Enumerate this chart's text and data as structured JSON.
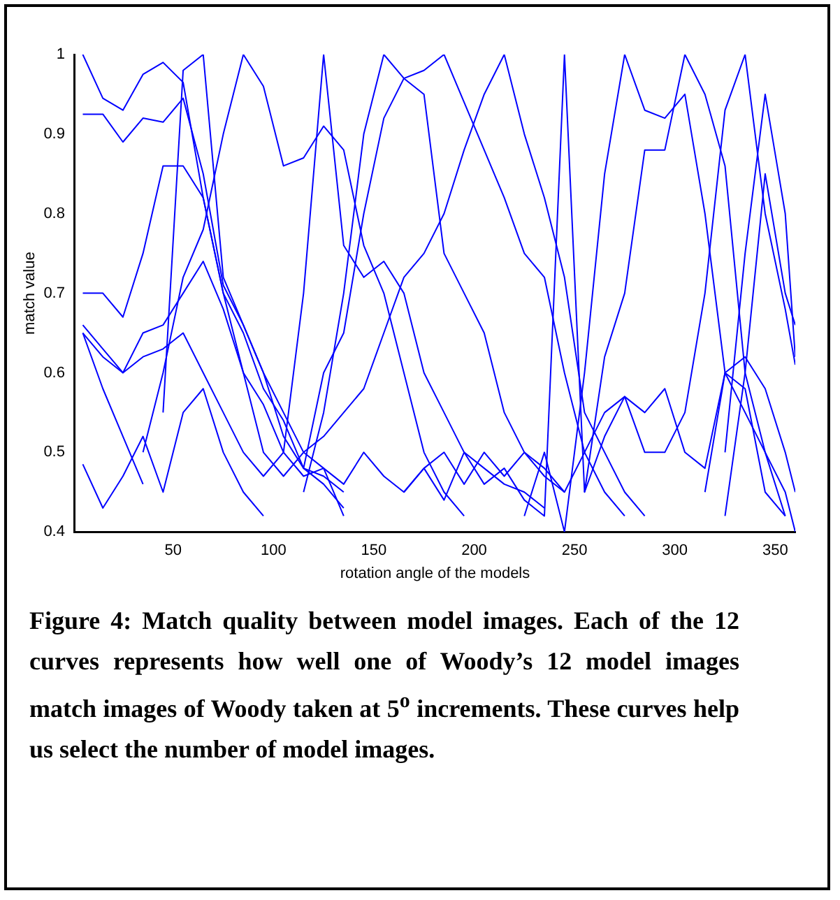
{
  "chart_data": {
    "type": "line",
    "xlabel": "rotation angle of the models",
    "ylabel": "match value",
    "x": [
      5,
      15,
      25,
      35,
      45,
      55,
      65,
      75,
      85,
      95,
      105,
      115,
      125,
      135,
      145,
      155,
      165,
      175,
      185,
      195,
      205,
      215,
      225,
      235,
      245,
      255,
      265,
      275,
      285,
      295,
      305,
      315,
      325,
      335,
      345,
      355,
      360
    ],
    "xlim": [
      1,
      360
    ],
    "xticks": [
      50,
      100,
      150,
      200,
      250,
      300,
      350
    ],
    "ylim": [
      0.4,
      1
    ],
    "yticks": [
      0.4,
      0.5,
      0.6,
      0.7,
      0.8,
      0.9,
      1
    ],
    "series": [
      {
        "color": "#0000ff",
        "values": [
          1.0,
          0.945,
          0.93,
          0.975,
          0.99,
          0.965,
          0.82,
          0.7,
          0.65,
          0.58,
          0.54,
          0.48,
          0.47,
          0.45,
          null,
          null,
          null,
          null,
          null,
          null,
          null,
          null,
          null,
          null,
          null,
          null,
          null,
          null,
          null,
          null,
          null,
          null,
          0.5,
          0.75,
          0.95,
          0.8,
          0.62
        ]
      },
      {
        "color": "#0000ff",
        "values": [
          0.925,
          0.925,
          0.89,
          0.92,
          0.915,
          0.945,
          0.85,
          0.71,
          0.66,
          0.6,
          0.55,
          0.5,
          0.48,
          0.42,
          null,
          null,
          null,
          null,
          null,
          null,
          null,
          null,
          null,
          null,
          null,
          null,
          null,
          null,
          null,
          null,
          null,
          null,
          0.42,
          0.6,
          0.85,
          0.7,
          0.66
        ]
      },
      {
        "color": "#0000ff",
        "values": [
          null,
          null,
          null,
          null,
          0.55,
          0.98,
          1.0,
          0.72,
          0.66,
          0.6,
          0.52,
          0.48,
          0.46,
          0.43,
          null,
          null,
          null,
          null,
          null,
          null,
          null,
          null,
          null,
          null,
          null,
          null,
          null,
          null,
          null,
          null,
          null,
          0.45,
          0.6,
          0.62,
          0.58,
          0.5,
          0.45
        ]
      },
      {
        "color": "#0000ff",
        "values": [
          null,
          null,
          null,
          0.5,
          0.6,
          0.72,
          0.78,
          0.9,
          1.0,
          0.96,
          0.86,
          0.87,
          0.91,
          0.88,
          0.76,
          0.7,
          0.6,
          0.5,
          0.45,
          0.42,
          null,
          null,
          null,
          null,
          null,
          null,
          null,
          null,
          null,
          null,
          null,
          null,
          null,
          null,
          null,
          null,
          null
        ]
      },
      {
        "color": "#0000ff",
        "values": [
          0.66,
          0.63,
          0.6,
          0.62,
          0.63,
          0.65,
          0.6,
          0.55,
          0.5,
          0.47,
          0.5,
          0.7,
          1.0,
          0.76,
          0.72,
          0.74,
          0.7,
          0.6,
          0.55,
          0.5,
          0.48,
          0.46,
          0.45,
          0.43,
          null,
          null,
          null,
          null,
          null,
          null,
          null,
          null,
          null,
          null,
          null,
          null,
          null
        ]
      },
      {
        "color": "#0000ff",
        "values": [
          0.485,
          0.43,
          0.47,
          0.52,
          0.45,
          0.55,
          0.58,
          0.5,
          0.45,
          0.42,
          null,
          0.45,
          0.55,
          0.7,
          0.9,
          1.0,
          0.97,
          0.95,
          0.75,
          0.7,
          0.65,
          0.55,
          0.5,
          0.48,
          0.45,
          null,
          null,
          null,
          null,
          null,
          null,
          null,
          null,
          null,
          null,
          null,
          null
        ]
      },
      {
        "color": "#0000ff",
        "values": [
          0.65,
          0.58,
          0.52,
          0.46,
          null,
          null,
          null,
          null,
          null,
          null,
          null,
          0.48,
          0.6,
          0.65,
          0.8,
          0.92,
          0.97,
          0.98,
          1.0,
          0.94,
          0.88,
          0.82,
          0.75,
          0.72,
          0.6,
          0.5,
          0.45,
          0.42,
          null,
          null,
          null,
          null,
          null,
          null,
          null,
          null,
          null
        ]
      },
      {
        "color": "#0000ff",
        "values": [
          0.7,
          0.7,
          0.67,
          0.75,
          0.86,
          0.86,
          0.82,
          0.7,
          0.6,
          0.5,
          0.47,
          0.5,
          0.52,
          0.55,
          0.58,
          0.65,
          0.72,
          0.75,
          0.8,
          0.88,
          0.95,
          1.0,
          0.9,
          0.82,
          0.72,
          0.55,
          0.5,
          0.45,
          0.42,
          null,
          null,
          null,
          null,
          null,
          null,
          null,
          null
        ]
      },
      {
        "color": "#0000ff",
        "values": [
          0.65,
          0.62,
          0.6,
          0.65,
          0.66,
          0.7,
          0.74,
          0.68,
          0.6,
          0.56,
          0.5,
          0.47,
          0.48,
          0.46,
          0.5,
          0.47,
          0.45,
          0.48,
          0.44,
          0.5,
          0.46,
          0.48,
          0.44,
          0.42,
          1.0,
          0.45,
          0.52,
          0.57,
          0.55,
          0.58,
          0.5,
          0.48,
          0.6,
          0.58,
          0.45,
          0.42,
          null
        ]
      },
      {
        "color": "#0000ff",
        "values": [
          null,
          null,
          null,
          null,
          null,
          null,
          null,
          null,
          null,
          null,
          null,
          null,
          null,
          null,
          null,
          null,
          null,
          null,
          null,
          null,
          null,
          null,
          0.42,
          0.5,
          0.4,
          0.6,
          0.85,
          1.0,
          0.93,
          0.92,
          0.95,
          0.8,
          0.6,
          0.55,
          0.5,
          0.42,
          null
        ]
      },
      {
        "color": "#0000ff",
        "values": [
          null,
          null,
          null,
          null,
          null,
          null,
          null,
          null,
          null,
          null,
          null,
          null,
          null,
          null,
          null,
          null,
          null,
          null,
          null,
          null,
          null,
          null,
          null,
          null,
          null,
          0.45,
          0.62,
          0.7,
          0.88,
          0.88,
          1.0,
          0.95,
          0.86,
          0.6,
          0.5,
          0.45,
          0.4
        ]
      },
      {
        "color": "#0000ff",
        "values": [
          null,
          null,
          null,
          null,
          null,
          null,
          null,
          null,
          null,
          null,
          null,
          null,
          null,
          null,
          null,
          null,
          0.45,
          0.48,
          0.5,
          0.46,
          0.5,
          0.47,
          0.5,
          0.47,
          0.45,
          0.5,
          0.55,
          0.57,
          0.5,
          0.5,
          0.55,
          0.7,
          0.93,
          1.0,
          0.8,
          0.68,
          0.61
        ]
      }
    ],
    "annotations": [
      "Figure 4: Match quality between model images. Each of the 12 curves represents how well one of Woody’s 12 model images match images of Woody taken at 5$^{o}$ increments. These curves help us select the number of model images."
    ]
  }
}
